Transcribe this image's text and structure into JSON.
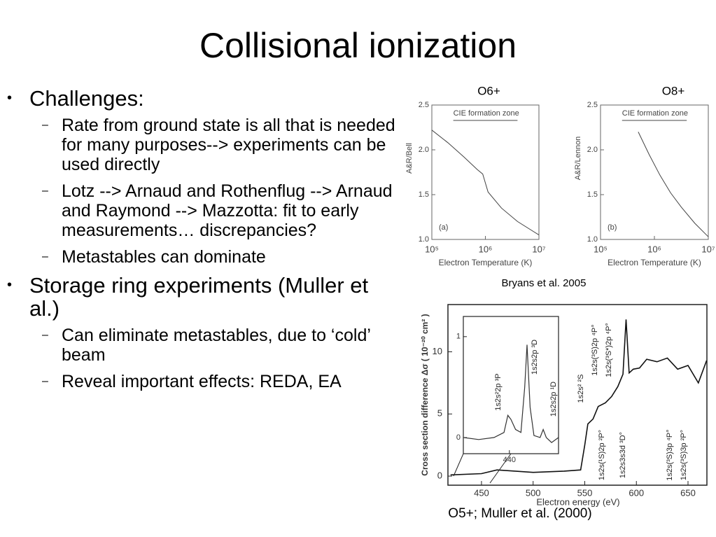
{
  "title": "Collisional ionization",
  "bullets": [
    {
      "text": "Challenges:",
      "sub": [
        "Rate from ground state is all that is needed for many purposes--> experiments can be used directly",
        "Lotz --> Arnaud and Rothenflug --> Arnaud and Raymond --> Mazzotta: fit to early measurements… discrepancies?",
        "Metastables can dominate"
      ]
    },
    {
      "text": "Storage ring experiments (Muller et al.)",
      "sub": [
        "Can eliminate metastables, due to ‘cold’ beam",
        "Reveal important effects: REDA, EA"
      ]
    }
  ],
  "top_figure": {
    "caption": "Bryans et al. 2005",
    "panels": [
      {
        "title": "O6+",
        "ylabel": "A&R/Bell",
        "xlabel": "Electron Temperature (K)",
        "panel_label": "(a)",
        "annotation": "CIE formation zone",
        "zone": [
          5.4,
          6.6
        ],
        "xlim": [
          5,
          7
        ],
        "ylim": [
          1.0,
          2.5
        ],
        "xticks": [
          {
            "value": 5,
            "label": "10⁵"
          },
          {
            "value": 6,
            "label": "10⁶"
          },
          {
            "value": 7,
            "label": "10⁷"
          }
        ],
        "yticks": [
          {
            "value": 1,
            "label": "1.0"
          },
          1.5,
          {
            "value": 2,
            "label": "2.0"
          },
          2.5
        ],
        "x": [
          5,
          5.3,
          5.6,
          5.85,
          5.95,
          6.05,
          6.3,
          6.6,
          7
        ],
        "values": [
          2.22,
          2.08,
          1.92,
          1.78,
          1.73,
          1.53,
          1.35,
          1.2,
          1.05
        ]
      },
      {
        "title": "O8+",
        "ylabel": "A&R/Lennon",
        "xlabel": "Electron Temperature (K)",
        "panel_label": "(b)",
        "annotation": "CIE formation zone",
        "zone": [
          5.4,
          6.6
        ],
        "xlim": [
          5,
          7
        ],
        "ylim": [
          1.0,
          2.5
        ],
        "xticks": [
          {
            "value": 5,
            "label": "10⁵"
          },
          {
            "value": 6,
            "label": "10⁶"
          },
          {
            "value": 7,
            "label": "10⁷"
          }
        ],
        "yticks": [
          {
            "value": 1,
            "label": "1.0"
          },
          1.5,
          {
            "value": 2,
            "label": "2.0"
          },
          2.5
        ],
        "x": [
          5.7,
          5.9,
          6.1,
          6.3,
          6.5,
          6.75,
          7
        ],
        "values": [
          2.2,
          1.95,
          1.72,
          1.52,
          1.36,
          1.18,
          1.03
        ]
      }
    ]
  },
  "bottom_figure": {
    "caption": "O5+; Muller et al. (2000)",
    "ylabel": "Cross section difference Δσ ( 10⁻²⁰ cm² )",
    "xlabel": "Electron energy (eV)",
    "xlim": [
      417.5,
      668.3
    ],
    "ylim": [
      -0.73,
      13.8
    ],
    "xticks": [
      450,
      500,
      550,
      600,
      650
    ],
    "yticks": [
      0,
      5,
      10
    ],
    "x": [
      420,
      450,
      465,
      500,
      530,
      546,
      550,
      553,
      558,
      563,
      570,
      576,
      582,
      587,
      590,
      593,
      597,
      603,
      610,
      620,
      630,
      640,
      650,
      660,
      668
    ],
    "values": [
      0.1,
      0.2,
      0.5,
      0.3,
      0.4,
      0.5,
      2.5,
      4.2,
      4.6,
      5.6,
      5.9,
      6.4,
      7.2,
      8.2,
      12.6,
      8.3,
      8.6,
      8.7,
      9.4,
      9.2,
      9.5,
      8.6,
      8.9,
      7.5,
      9.3
    ],
    "peak_labels": [
      "1s2s² ²S",
      "1s2s(³S)2p ⁴P°",
      "1s2s(³S*)2p ⁴P°",
      "1s2s(¹S)2p ²P°",
      "1s2s3s3d ³D°",
      "1s2s(³S)3p ⁴P°",
      "1s2s(³S)3p ²P°"
    ],
    "inset": {
      "xlim": [
        434,
        446.4
      ],
      "ylim": [
        -0.16,
        1.2
      ],
      "xticks": [
        440
      ],
      "yticks": [
        0,
        1
      ],
      "x": [
        434,
        436,
        438,
        439.3,
        439.8,
        440.2,
        440.8,
        441.5,
        442,
        442.3,
        442.7,
        443.2,
        444,
        444.4,
        444.8,
        445.5,
        446.4
      ],
      "values": [
        0.0,
        -0.02,
        0.0,
        0.05,
        0.22,
        0.18,
        0.08,
        0.05,
        0.5,
        0.92,
        0.3,
        0.02,
        0.0,
        0.08,
        0.0,
        -0.05,
        0.0
      ],
      "peak_labels": [
        "1s2s²2p ³P",
        "1s2s2p ³D",
        "1s2s2p ¹D"
      ]
    }
  }
}
